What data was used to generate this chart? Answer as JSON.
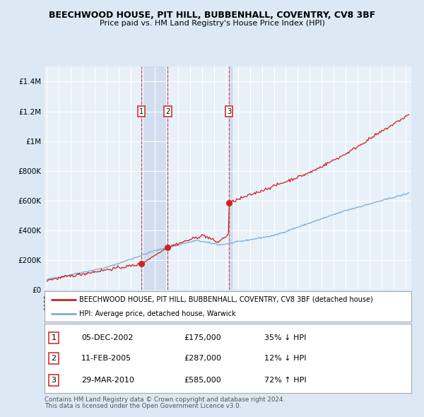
{
  "title": "BEECHWOOD HOUSE, PIT HILL, BUBBENHALL, COVENTRY, CV8 3BF",
  "subtitle": "Price paid vs. HM Land Registry's House Price Index (HPI)",
  "bg_color": "#dce9f5",
  "plot_bg_color": "#e8f0f8",
  "grid_color": "#ffffff",
  "hpi_line_color": "#7badd4",
  "price_line_color": "#cc2222",
  "marker_color": "#cc2222",
  "vline_color": "#dd4444",
  "vband_color": "#c8d8ec",
  "sales": [
    {
      "num": 1,
      "date_label": "05-DEC-2002",
      "date_x": 2002.92,
      "price": 175000,
      "pct": "35%",
      "dir": "↓"
    },
    {
      "num": 2,
      "date_label": "11-FEB-2005",
      "date_x": 2005.12,
      "price": 287000,
      "pct": "12%",
      "dir": "↓"
    },
    {
      "num": 3,
      "date_label": "29-MAR-2010",
      "date_x": 2010.25,
      "price": 585000,
      "pct": "72%",
      "dir": "↑"
    }
  ],
  "ylabel_ticks": [
    0,
    200000,
    400000,
    600000,
    800000,
    1000000,
    1200000,
    1400000
  ],
  "ylabel_labels": [
    "£0",
    "£200K",
    "£400K",
    "£600K",
    "£800K",
    "£1M",
    "£1.2M",
    "£1.4M"
  ],
  "xmin": 1994.8,
  "xmax": 2025.5,
  "ymin": 0,
  "ymax": 1500000,
  "legend_house": "BEECHWOOD HOUSE, PIT HILL, BUBBENHALL, COVENTRY, CV8 3BF (detached house)",
  "legend_hpi": "HPI: Average price, detached house, Warwick",
  "footnote1": "Contains HM Land Registry data © Crown copyright and database right 2024.",
  "footnote2": "This data is licensed under the Open Government Licence v3.0."
}
